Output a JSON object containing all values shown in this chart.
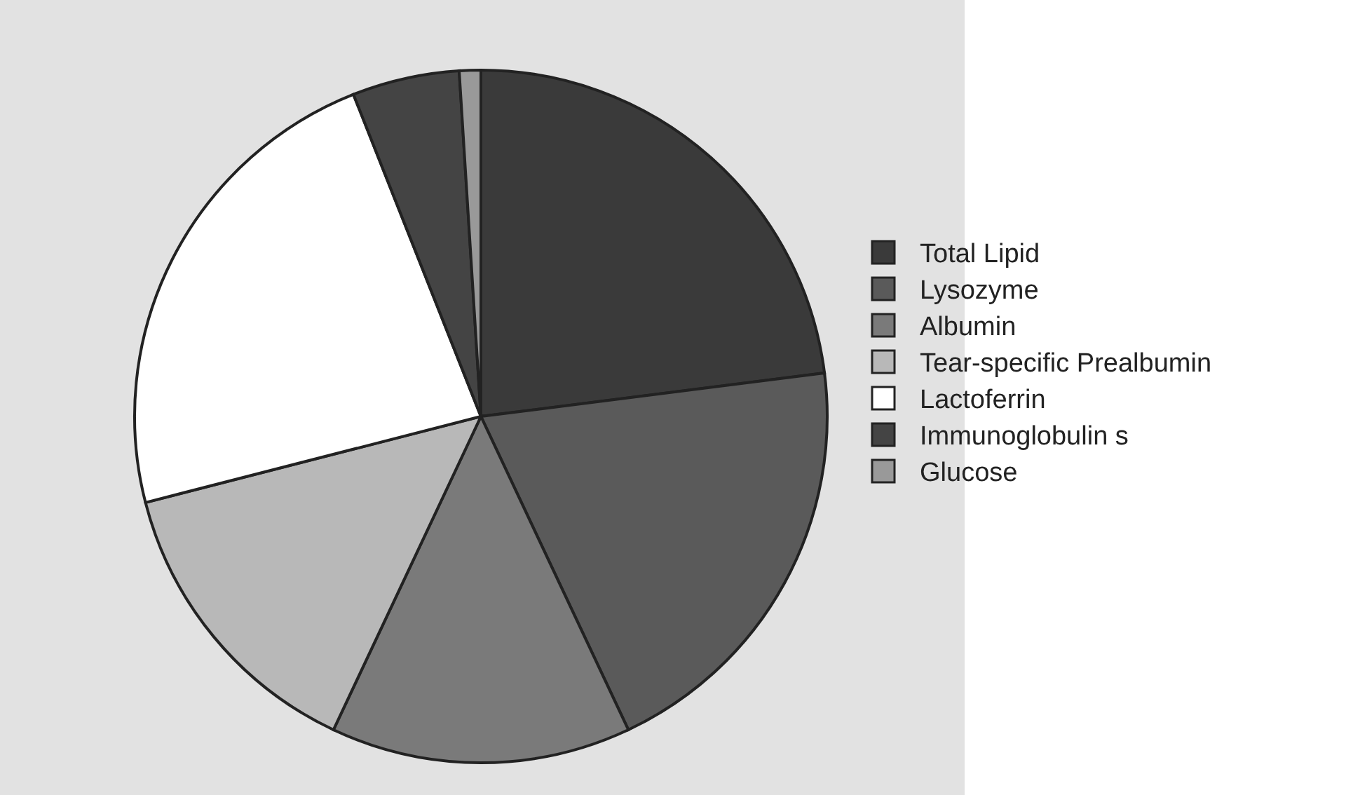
{
  "chart_data": {
    "type": "pie",
    "categories": [
      "Total Lipid",
      "Lysozyme",
      "Albumin",
      "Tear-specific Prealbumin",
      "Lactoferrin",
      "Immunoglobulin s",
      "Glucose"
    ],
    "values": [
      23,
      20,
      14,
      14,
      23,
      5,
      1
    ],
    "colors": [
      "#3a3a3a",
      "#5a5a5a",
      "#7a7a7a",
      "#b8b8b8",
      "#ffffff",
      "#444444",
      "#999999"
    ],
    "legend": "right"
  }
}
